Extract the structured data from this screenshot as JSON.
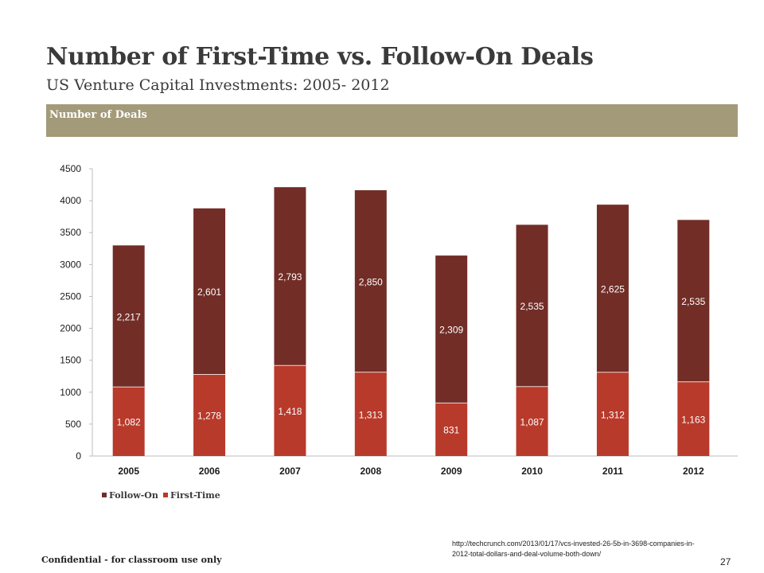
{
  "slide": {
    "title": "Number of First-Time vs. Follow-On Deals",
    "subtitle": "US Venture Capital Investments: 2005- 2012",
    "band_label": "Number of Deals",
    "source": "http://techcrunch.com/2013/01/17/vcs-invested-26-5b-in-3698-companies-in-2012-total-dollars-and-deal-volume-both-down/",
    "confidential": "Confidential - for classroom use only",
    "page_number": "27"
  },
  "colors": {
    "first_time": "#b83a2b",
    "follow_on": "#722d27",
    "band": "#a39a79",
    "text": "#3a3a3a"
  },
  "chart_data": {
    "type": "bar",
    "stacked": true,
    "categories": [
      "2005",
      "2006",
      "2007",
      "2008",
      "2009",
      "2010",
      "2011",
      "2012"
    ],
    "series": [
      {
        "name": "First-Time",
        "values": [
          1082,
          1278,
          1418,
          1313,
          831,
          1087,
          1312,
          1163
        ],
        "labels": [
          "1,082",
          "1,278",
          "1,418",
          "1,313",
          "831",
          "1,087",
          "1,312",
          "1,163"
        ]
      },
      {
        "name": "Follow-On",
        "values": [
          2217,
          2601,
          2793,
          2850,
          2309,
          2535,
          2625,
          2535
        ],
        "labels": [
          "2,217",
          "2,601",
          "2,793",
          "2,850",
          "2,309",
          "2,535",
          "2,625",
          "2,535"
        ]
      }
    ],
    "legend_order": [
      "Follow-On",
      "First-Time"
    ],
    "legend_position": "bottom-left",
    "ylim": [
      0,
      4500
    ],
    "yticks": [
      0,
      500,
      1000,
      1500,
      2000,
      2500,
      3000,
      3500,
      4000,
      4500
    ],
    "grid": false
  }
}
